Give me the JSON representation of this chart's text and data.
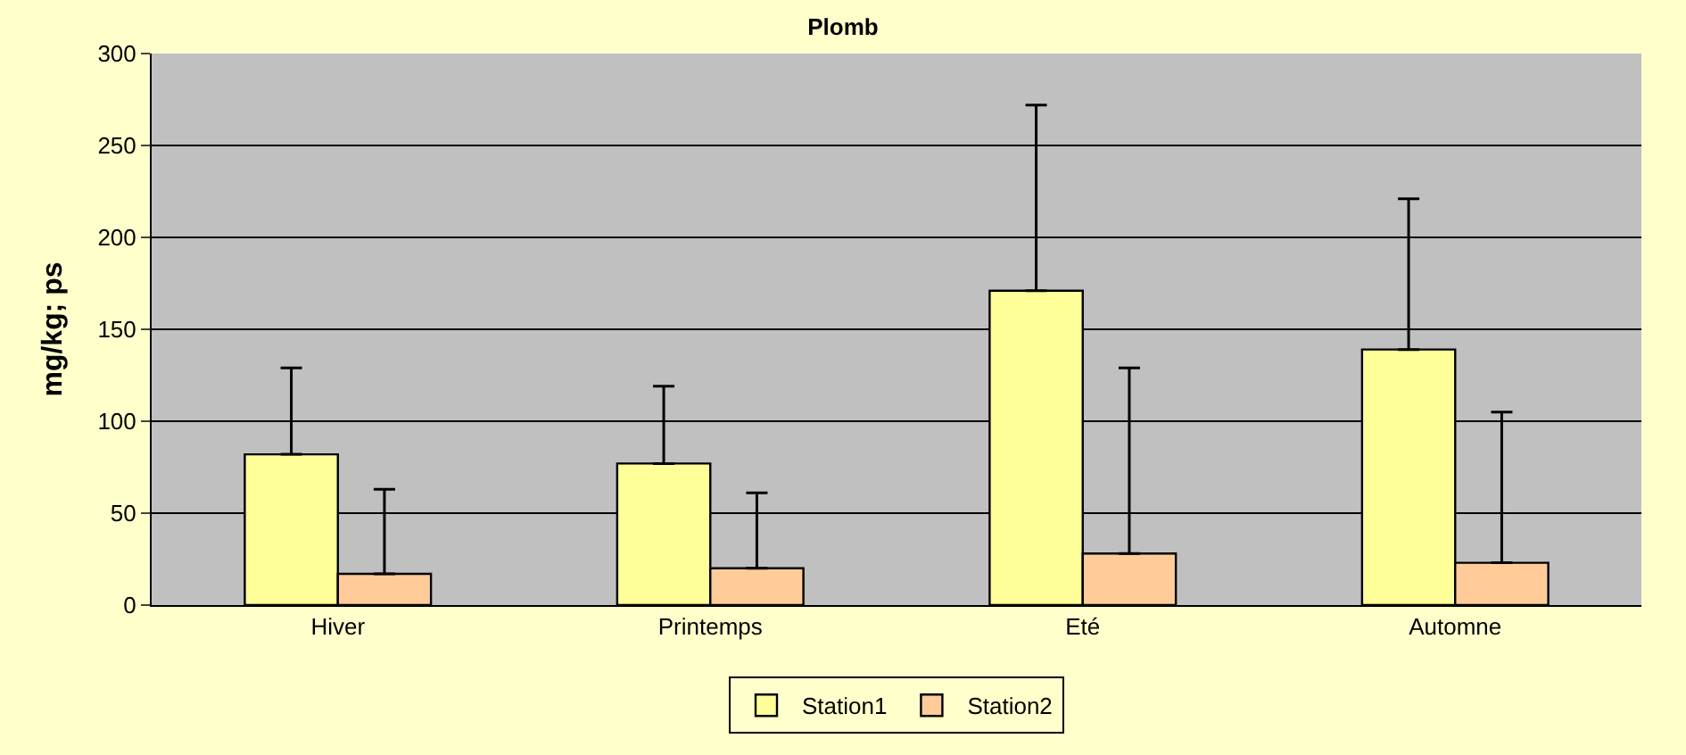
{
  "chart_data": {
    "type": "bar",
    "title": "Plomb",
    "ylabel": "mg/kg; ps",
    "categories": [
      "Hiver",
      "Printemps",
      "Eté",
      "Automne"
    ],
    "series": [
      {
        "name": "Station1",
        "color": "#ffff99",
        "values": [
          82,
          77,
          171,
          139
        ],
        "errors": [
          [
            82,
            129
          ],
          [
            77,
            119
          ],
          [
            171,
            272
          ],
          [
            139,
            221
          ]
        ]
      },
      {
        "name": "Station2",
        "color": "#ffcc99",
        "values": [
          17,
          20,
          28,
          23
        ],
        "errors": [
          [
            17,
            63
          ],
          [
            20,
            61
          ],
          [
            28,
            129
          ],
          [
            23,
            105
          ]
        ]
      }
    ],
    "ylim": [
      0,
      300
    ],
    "yticks": [
      0,
      50,
      100,
      150,
      200,
      250,
      300
    ],
    "grid": "y",
    "legend": "bottom"
  }
}
